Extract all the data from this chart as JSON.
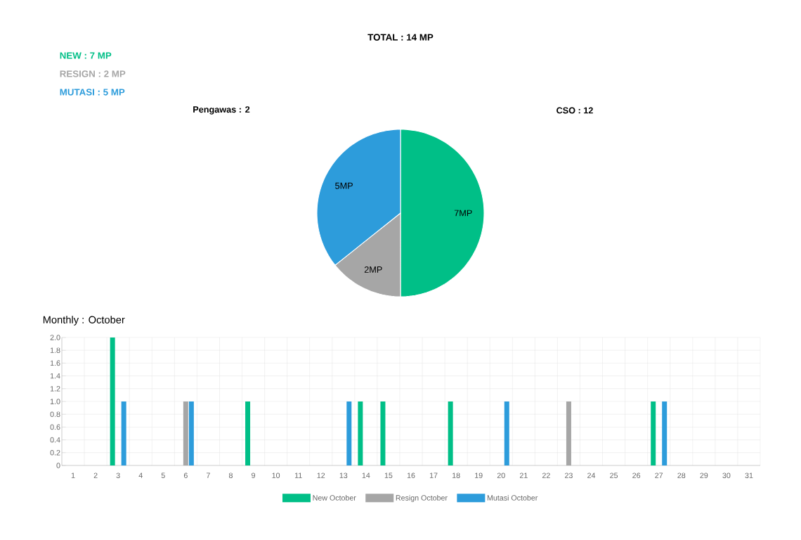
{
  "chart_data": [
    {
      "type": "pie",
      "title": "TOTAL : 14 MP",
      "categories": [
        null,
        null,
        null
      ],
      "values": [
        7,
        2,
        5
      ],
      "colors": [
        "#00bf87",
        "#a6a6a6",
        "#2d9cdb"
      ],
      "value_labels": [
        "7MP",
        "2MP",
        "5MP"
      ],
      "annotations": [
        "NEW : 7 MP",
        "RESIGN : 2 MP",
        "MUTASI : 5 MP",
        "Pengawas : 2",
        "CSO : 12"
      ]
    },
    {
      "type": "bar",
      "title": "Monthly : October",
      "categories": [
        "1",
        "2",
        "3",
        "4",
        "5",
        "6",
        "7",
        "8",
        "9",
        "10",
        "11",
        "12",
        "13",
        "14",
        "15",
        "16",
        "17",
        "18",
        "19",
        "20",
        "21",
        "22",
        "23",
        "24",
        "25",
        "26",
        "27",
        "28",
        "29",
        "30",
        "31"
      ],
      "series": [
        {
          "name": "New October",
          "color": "#00bf87",
          "values": [
            0,
            0,
            2,
            0,
            0,
            0,
            0,
            0,
            1,
            0,
            0,
            0,
            0,
            1,
            1,
            0,
            0,
            1,
            0,
            0,
            0,
            0,
            0,
            0,
            0,
            0,
            1,
            0,
            0,
            0,
            0
          ]
        },
        {
          "name": "Resign October",
          "color": "#a6a6a6",
          "values": [
            0,
            0,
            0,
            0,
            0,
            1,
            0,
            0,
            0,
            0,
            0,
            0,
            0,
            0,
            0,
            0,
            0,
            0,
            0,
            0,
            0,
            0,
            1,
            0,
            0,
            0,
            0,
            0,
            0,
            0,
            0
          ]
        },
        {
          "name": "Mutasi October",
          "color": "#2d9cdb",
          "values": [
            0,
            0,
            1,
            0,
            0,
            1,
            0,
            0,
            0,
            0,
            0,
            0,
            1,
            0,
            0,
            0,
            0,
            0,
            0,
            1,
            0,
            0,
            0,
            0,
            0,
            0,
            1,
            0,
            0,
            0,
            0
          ]
        }
      ],
      "ylim": [
        0,
        2
      ],
      "yticks": [
        0,
        0.2,
        0.4,
        0.6,
        0.8,
        {
          "value": 1,
          "label": "1.0"
        },
        1.2,
        1.4,
        1.6,
        1.8,
        {
          "value": 2,
          "label": "2.0"
        }
      ],
      "grid": true,
      "legend": "bottom"
    }
  ]
}
